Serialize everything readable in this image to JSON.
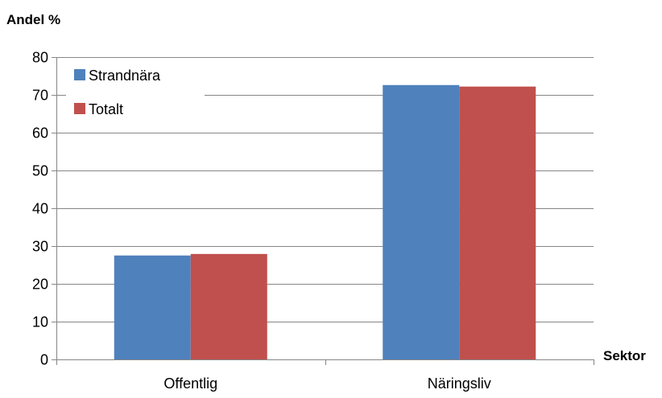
{
  "chart_data": {
    "type": "bar",
    "ylabel": "Andel %",
    "xlabel": "Sektor",
    "categories": [
      "Offentlig",
      "Näringsliv"
    ],
    "series": [
      {
        "name": "Strandnära",
        "color": "#4F81BD",
        "values": [
          27.5,
          72.6
        ]
      },
      {
        "name": "Totalt",
        "color": "#C0504D",
        "values": [
          27.9,
          72.2
        ]
      }
    ],
    "ylim": [
      0,
      80
    ],
    "yticks": [
      "0",
      "10",
      "20",
      "30",
      "40",
      "50",
      "60",
      "70",
      "80"
    ],
    "grid": true,
    "legend": "top-left"
  }
}
